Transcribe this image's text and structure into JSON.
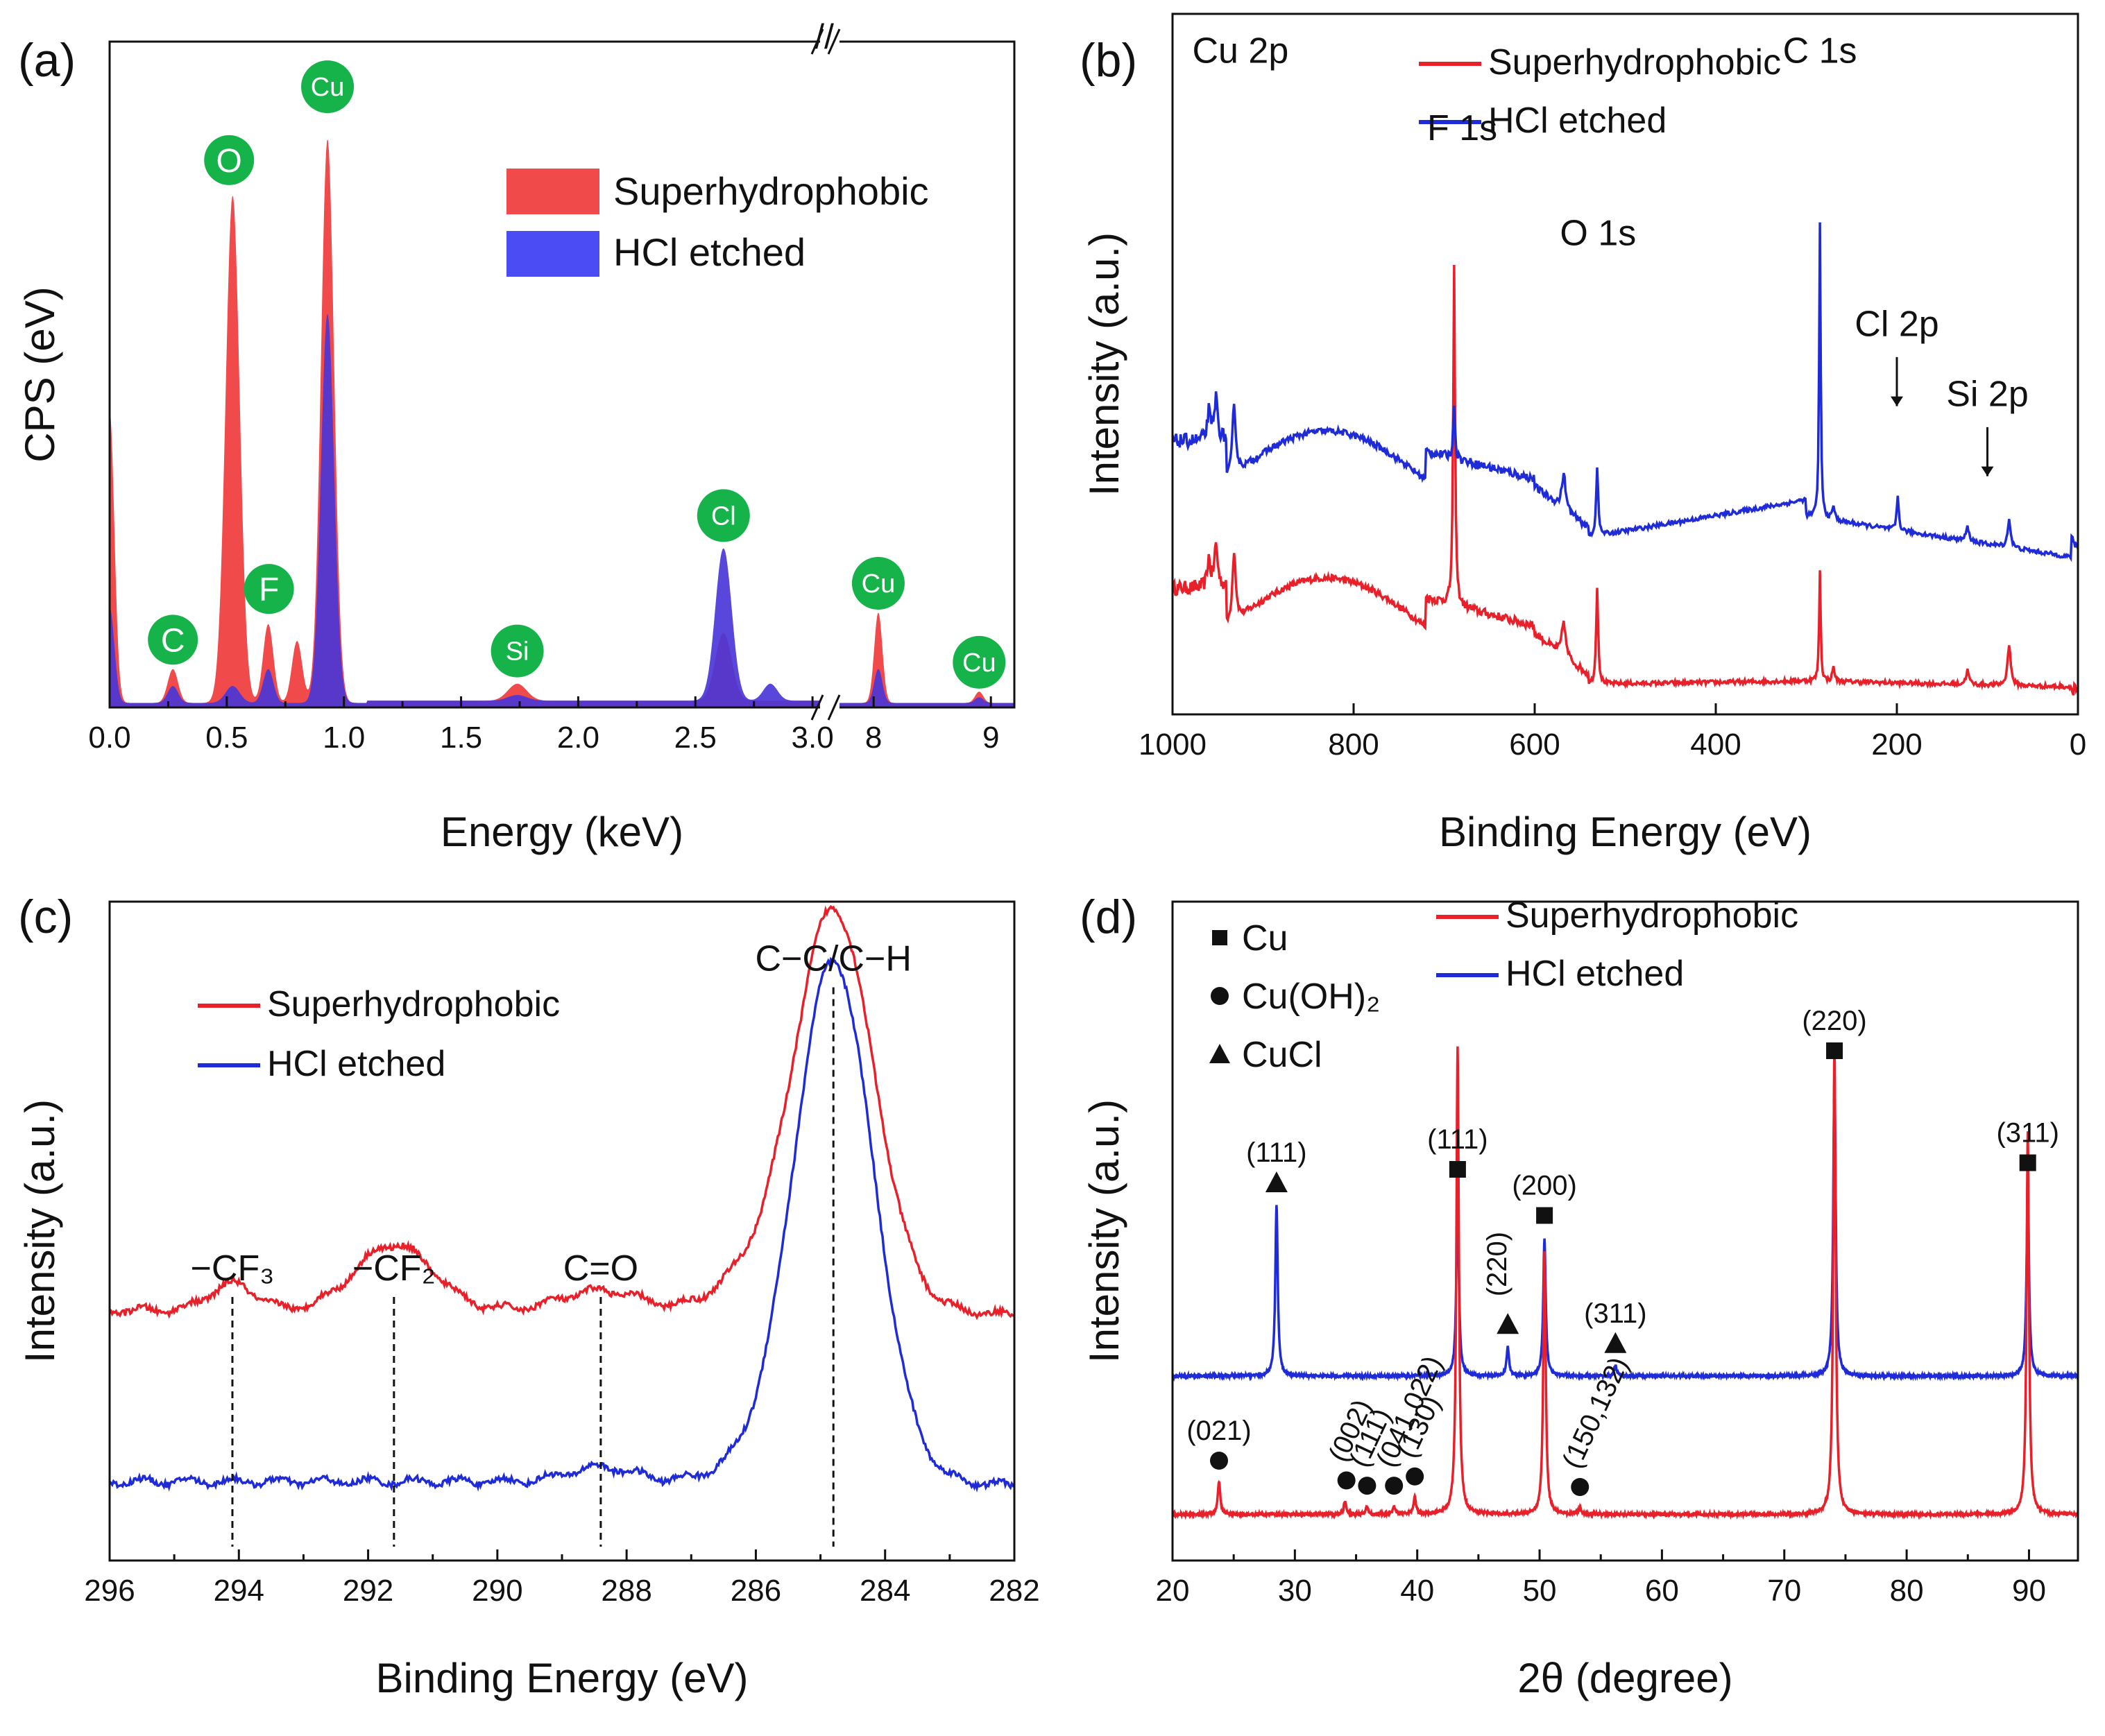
{
  "figure": {
    "colors": {
      "red": "#e8202a",
      "blue": "#1f2bd6",
      "red_fill": "#f04a4a",
      "blue_fill": "#4c4cf5",
      "overlap_fill": "#4a1fb8",
      "badge": "#16b34a"
    }
  },
  "chart_data": [
    {
      "id": "a",
      "type": "area",
      "panel_label": "(a)",
      "xlabel": "Energy (keV)",
      "ylabel": "CPS (eV)",
      "xticks_left": [
        "0.0",
        "0.5",
        "1.0",
        "1.5",
        "2.0",
        "2.5",
        "3.0"
      ],
      "xticks_right": [
        "8",
        "9"
      ],
      "xlim_left": [
        0.0,
        3.05
      ],
      "xlim_right": [
        7.65,
        9.2
      ],
      "break_symbol": "//",
      "legend": [
        "Superhydrophobic",
        "HCl etched"
      ],
      "series": [
        {
          "name": "Superhydrophobic",
          "peaks": [
            {
              "x": 0.0,
              "h": 52
            },
            {
              "x": 0.27,
              "h": 6
            },
            {
              "x": 0.525,
              "h": 90
            },
            {
              "x": 0.677,
              "h": 14
            },
            {
              "x": 0.8,
              "h": 11
            },
            {
              "x": 0.93,
              "h": 100
            },
            {
              "x": 1.74,
              "h": 3
            },
            {
              "x": 2.62,
              "h": 12
            },
            {
              "x": 8.04,
              "h": 16
            },
            {
              "x": 8.9,
              "h": 2
            }
          ]
        },
        {
          "name": "HCl etched",
          "peaks": [
            {
              "x": 0.0,
              "h": 17
            },
            {
              "x": 0.27,
              "h": 3
            },
            {
              "x": 0.525,
              "h": 3
            },
            {
              "x": 0.677,
              "h": 6
            },
            {
              "x": 0.93,
              "h": 69
            },
            {
              "x": 1.74,
              "h": 1
            },
            {
              "x": 2.62,
              "h": 27
            },
            {
              "x": 2.82,
              "h": 3
            },
            {
              "x": 8.04,
              "h": 6
            },
            {
              "x": 8.9,
              "h": 1
            }
          ]
        }
      ],
      "element_badges": [
        {
          "text": "C",
          "x": 0.27,
          "y": 12
        },
        {
          "text": "O",
          "x": 0.51,
          "y": 97
        },
        {
          "text": "F",
          "x": 0.68,
          "y": 21
        },
        {
          "text": "Cu",
          "x": 0.93,
          "y": 110
        },
        {
          "text": "Si",
          "x": 1.74,
          "y": 10
        },
        {
          "text": "Cl",
          "x": 2.62,
          "y": 34
        },
        {
          "text": "Cu",
          "x": 8.04,
          "y": 22
        },
        {
          "text": "Cu",
          "x": 8.9,
          "y": 8
        }
      ]
    },
    {
      "id": "b",
      "type": "line",
      "panel_label": "(b)",
      "xlabel": "Binding Energy (eV)",
      "ylabel": "Intensity (a.u.)",
      "xlim": [
        1000,
        0
      ],
      "xticks": [
        "1000",
        "800",
        "600",
        "400",
        "200",
        "0"
      ],
      "legend": [
        "Superhydrophobic",
        "HCl etched"
      ],
      "annotations": [
        {
          "text": "Cu 2p",
          "x": 925,
          "y": 93
        },
        {
          "text": "F 1s",
          "x": 680,
          "y": 82
        },
        {
          "text": "O 1s",
          "x": 530,
          "y": 67
        },
        {
          "text": "C 1s",
          "x": 285,
          "y": 93
        },
        {
          "text": "Cl 2p",
          "x": 200,
          "y": 54
        },
        {
          "text": "Si 2p",
          "x": 100,
          "y": 44
        }
      ]
    },
    {
      "id": "c",
      "type": "line",
      "panel_label": "(c)",
      "xlabel": "Binding Energy (eV)",
      "ylabel": "Intensity (a.u.)",
      "xlim": [
        296,
        282
      ],
      "xticks": [
        "296",
        "294",
        "292",
        "290",
        "288",
        "286",
        "284",
        "282"
      ],
      "legend": [
        "Superhydrophobic",
        "HCl etched"
      ],
      "reference_lines": [
        {
          "text": "C−C/C−H",
          "x": 284.8
        },
        {
          "text": "C=O",
          "x": 288.4
        },
        {
          "text": "−CF₂",
          "x": 291.6
        },
        {
          "text": "−CF₃",
          "x": 294.1
        }
      ]
    },
    {
      "id": "d",
      "type": "line",
      "panel_label": "(d)",
      "xlabel": "2θ (degree)",
      "ylabel": "Intensity (a.u.)",
      "xlim": [
        20,
        94
      ],
      "xticks": [
        "20",
        "30",
        "40",
        "50",
        "60",
        "70",
        "80",
        "90"
      ],
      "legend": [
        "Superhydrophobic",
        "HCl etched"
      ],
      "marker_legend": [
        "Cu",
        "Cu(OH)₂",
        "CuCl"
      ],
      "blue_peaks": [
        {
          "x": 28.5,
          "label": "(111)",
          "marker": "triangle"
        },
        {
          "x": 43.3,
          "label": "(111)",
          "marker": "square"
        },
        {
          "x": 47.4,
          "label": "(220)",
          "marker": "triangle"
        },
        {
          "x": 50.4,
          "label": "(200)",
          "marker": "square"
        },
        {
          "x": 56.2,
          "label": "(311)",
          "marker": "triangle"
        },
        {
          "x": 74.1,
          "label": "(220)",
          "marker": "square"
        },
        {
          "x": 89.9,
          "label": "(311)",
          "marker": "square"
        }
      ],
      "red_peaks": [
        {
          "x": 23.8,
          "label": "(021)",
          "marker": "circle"
        },
        {
          "x": 34.1,
          "label": "(002)",
          "marker": "circle"
        },
        {
          "x": 35.9,
          "label": "(111)",
          "marker": "circle"
        },
        {
          "x": 38.1,
          "label": "(041,022)",
          "marker": "circle"
        },
        {
          "x": 39.8,
          "label": "(130)",
          "marker": "circle"
        },
        {
          "x": 53.3,
          "label": "(150,132)",
          "marker": "circle"
        }
      ]
    }
  ]
}
